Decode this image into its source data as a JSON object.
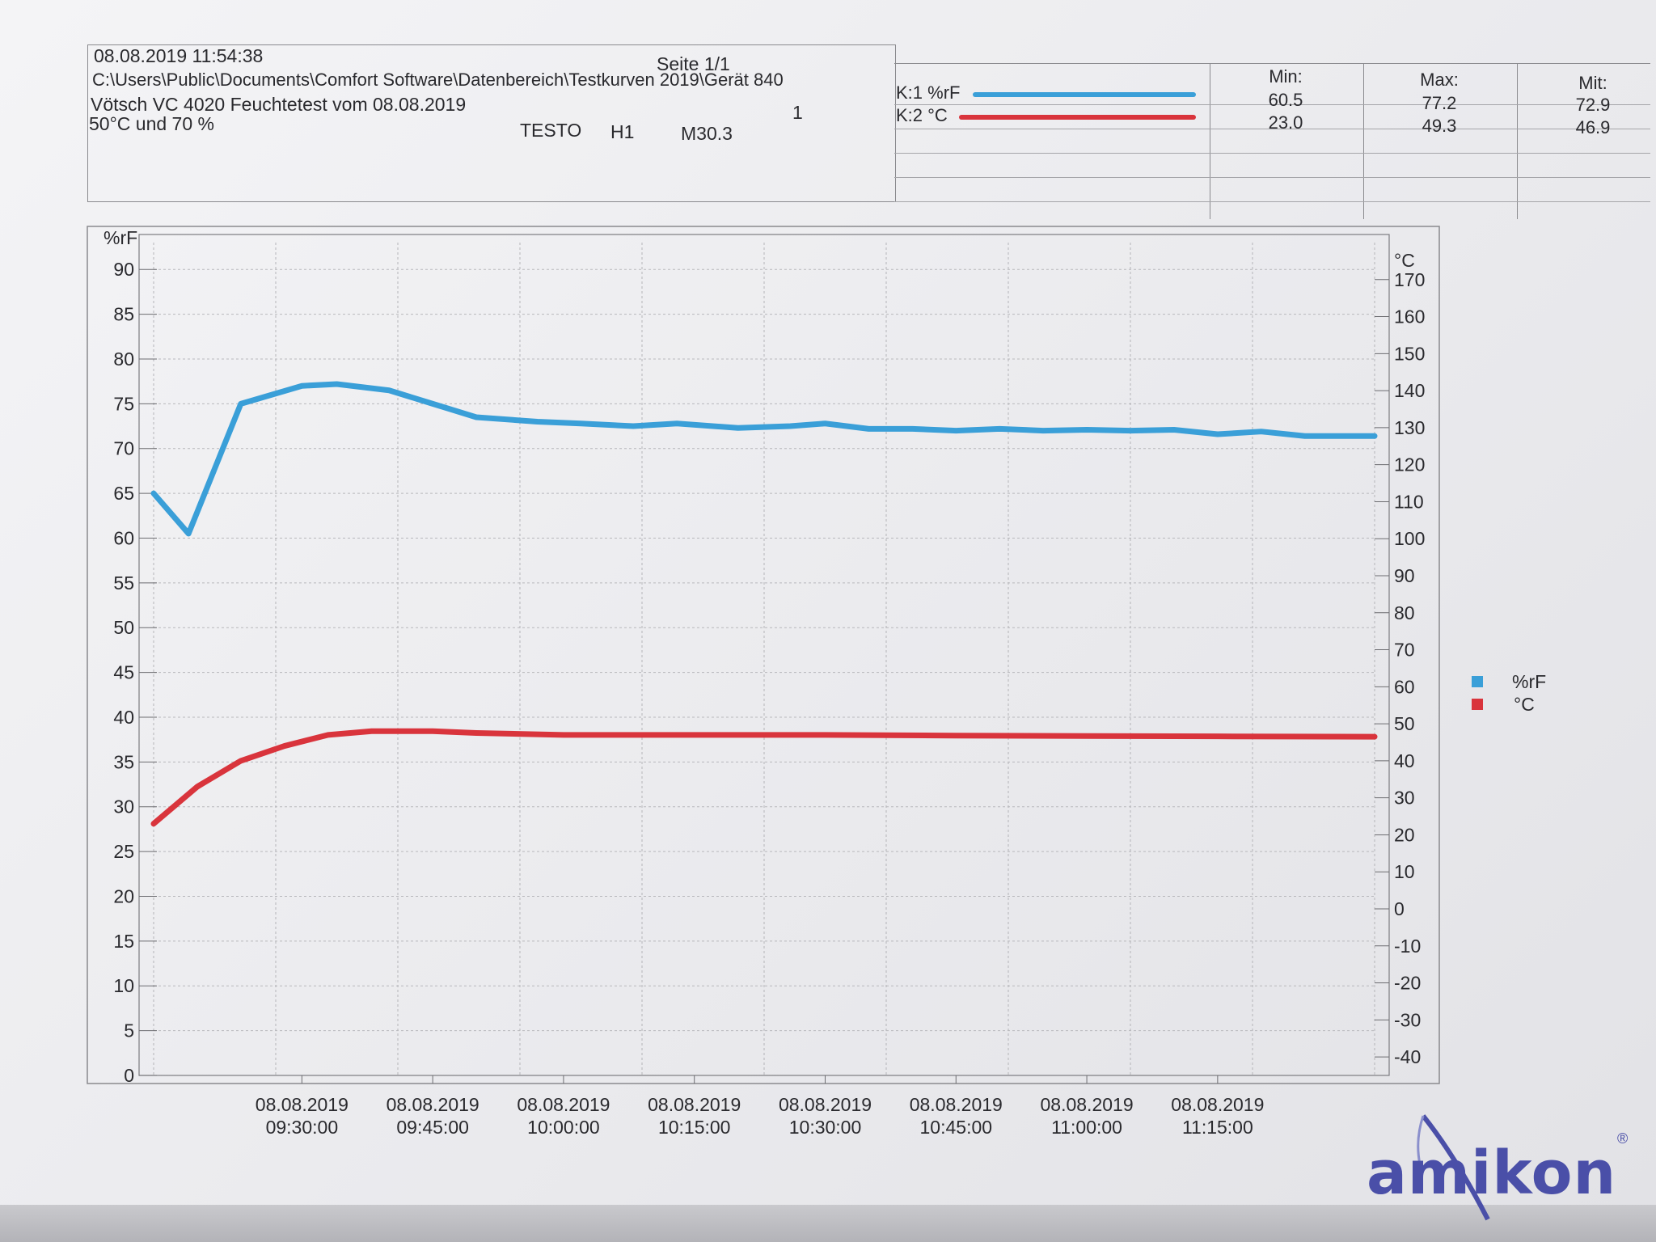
{
  "header": {
    "timestamp": "08.08.2019 11:54:38",
    "page": "Seite 1/1",
    "path": "C:\\Users\\Public\\Documents\\Comfort Software\\Datenbereich\\Testkurven 2019\\Gerät 840",
    "test_title": "Vötsch VC 4020 Feuchtetest vom 08.08.2019",
    "marker": "1",
    "conditions": "50°C und 70 %",
    "device": "TESTO",
    "h_label": "H1",
    "m_label": "M30.3"
  },
  "stats": {
    "col_min": "Min:",
    "col_max": "Max:",
    "col_mit": "Mit:",
    "rows": [
      {
        "channel": "K:1 %rF",
        "min": "60.5",
        "max": "77.2",
        "mit": "72.9",
        "color": "#3a9fd8"
      },
      {
        "channel": "K:2 °C",
        "min": "23.0",
        "max": "49.3",
        "mit": "46.9",
        "color": "#d9343c"
      }
    ]
  },
  "legend": [
    {
      "label": "%rF",
      "color": "#3a9fd8"
    },
    {
      "label": "°C",
      "color": "#d9343c"
    }
  ],
  "chart_data": {
    "type": "line",
    "title": "",
    "y_left_label": "%rF",
    "y_right_label": "°C",
    "y_left_ticks": [
      0,
      5,
      10,
      15,
      20,
      25,
      30,
      35,
      40,
      45,
      50,
      55,
      60,
      65,
      70,
      75,
      80,
      85,
      90
    ],
    "y_right_ticks": [
      -40,
      -30,
      -20,
      -10,
      0,
      10,
      20,
      30,
      40,
      50,
      60,
      70,
      80,
      90,
      100,
      110,
      120,
      130,
      140,
      150,
      160,
      170
    ],
    "ylim_left": [
      0,
      93
    ],
    "ylim_right": [
      -45,
      180
    ],
    "x_tick_dates": [
      "08.08.2019",
      "08.08.2019",
      "08.08.2019",
      "08.08.2019",
      "08.08.2019",
      "08.08.2019",
      "08.08.2019",
      "08.08.2019"
    ],
    "x_tick_times": [
      "09:30:00",
      "09:45:00",
      "10:00:00",
      "10:15:00",
      "10:30:00",
      "10:45:00",
      "11:00:00",
      "11:15:00"
    ],
    "x_tick_minutes": [
      570,
      585,
      600,
      615,
      630,
      645,
      660,
      675
    ],
    "xlim_minutes": [
      553,
      693
    ],
    "series": [
      {
        "name": "%rF",
        "axis": "left",
        "color": "#3a9fd8",
        "x_minutes": [
          553,
          557,
          563,
          570,
          574,
          580,
          585,
          590,
          597,
          602,
          608,
          613,
          620,
          626,
          630,
          635,
          640,
          645,
          650,
          655,
          660,
          665,
          670,
          675,
          680,
          685,
          690,
          693
        ],
        "values": [
          65,
          60.5,
          75,
          77,
          77.2,
          76.5,
          75,
          73.5,
          73,
          72.8,
          72.5,
          72.8,
          72.3,
          72.5,
          72.8,
          72.2,
          72.2,
          72,
          72.2,
          72,
          72.1,
          72,
          72.1,
          71.6,
          71.9,
          71.4,
          71.4,
          71.4
        ]
      },
      {
        "name": "°C",
        "axis": "right",
        "color": "#d9343c",
        "x_minutes": [
          553,
          558,
          563,
          568,
          573,
          578,
          585,
          590,
          600,
          615,
          630,
          645,
          660,
          675,
          693
        ],
        "values": [
          23,
          33,
          40,
          44,
          47,
          48,
          48,
          47.5,
          47,
          47,
          47,
          46.8,
          46.7,
          46.6,
          46.5
        ]
      }
    ]
  },
  "brand": {
    "logo_text": "amikon",
    "logo_color": "#4a4fa8",
    "registered": "®"
  }
}
